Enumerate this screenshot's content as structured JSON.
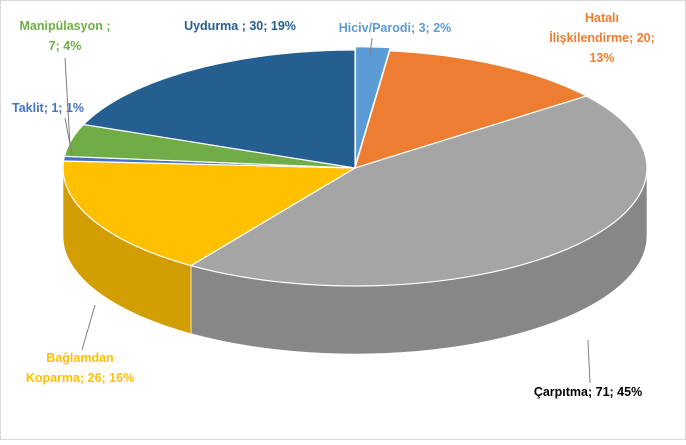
{
  "chart_data": {
    "type": "pie",
    "values": [
      3,
      20,
      71,
      26,
      1,
      7,
      30
    ],
    "value_labels": [
      [
        "Hiciv/Parodi; 3; 2%"
      ],
      [
        "Hatalı",
        "İlişkilendirme; 20;",
        "13%"
      ],
      [
        "Çarpıtma; 71; 45%"
      ],
      [
        "Bağlamdan",
        "Koparma; 26; 16%"
      ],
      [
        "Taklit; 1; 1%"
      ],
      [
        "Manipülasyon ;",
        "7; 4%"
      ],
      [
        "Uydurma ; 30; 19%"
      ]
    ],
    "colors": [
      "#5b9bd5",
      "#ed7d31",
      "#a5a5a5",
      "#ffc000",
      "#4472c4",
      "#70ad47",
      "#255e91"
    ],
    "label_colors": [
      "#5b9bd5",
      "#ed7d31",
      "#000000",
      "#ffc000",
      "#4472c4",
      "#70ad47",
      "#255e91"
    ]
  }
}
